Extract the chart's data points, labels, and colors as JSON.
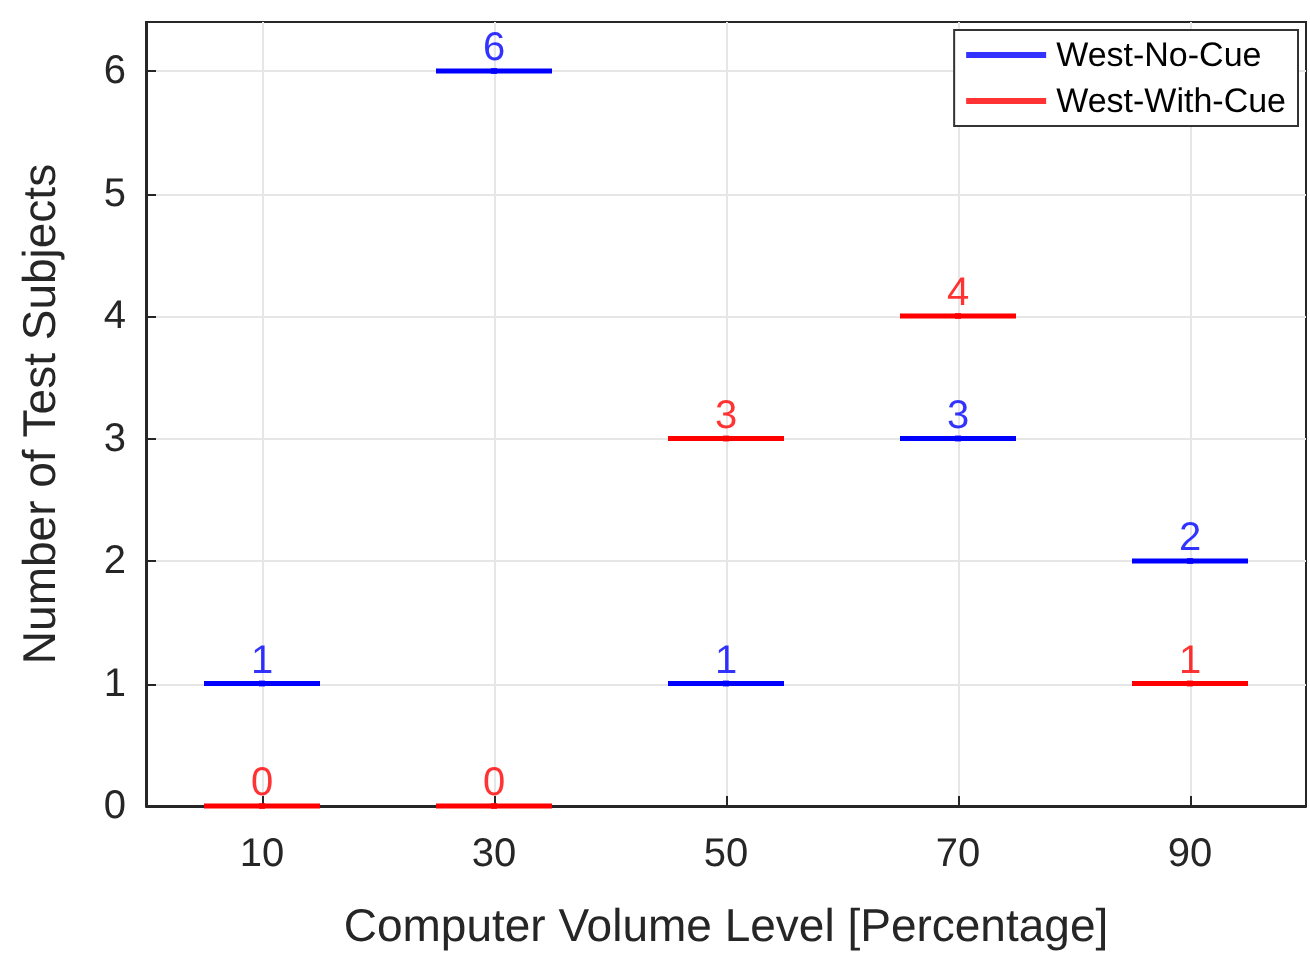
{
  "chart_data": {
    "type": "scatter",
    "xlabel": "Computer Volume Level [Percentage]",
    "ylabel": "Number of Test Subjects",
    "x": [
      10,
      30,
      50,
      70,
      90
    ],
    "series": [
      {
        "name": "West-No-Cue",
        "color": "#0000ff",
        "values": [
          1,
          6,
          1,
          3,
          2
        ],
        "xerrors": [
          5,
          5,
          5,
          5,
          5
        ]
      },
      {
        "name": "West-With-Cue",
        "color": "#ff0000",
        "values": [
          0,
          0,
          3,
          4,
          1
        ],
        "xerrors": [
          5,
          5,
          5,
          5,
          5
        ]
      }
    ],
    "xlim": [
      0,
      100
    ],
    "xticks": [
      10,
      30,
      50,
      70,
      90
    ],
    "ylim": [
      0,
      6.4
    ],
    "yticks": [
      0,
      1,
      2,
      3,
      4,
      5,
      6
    ],
    "grid": true,
    "legend": "top right",
    "data_labels": true,
    "marker": "square"
  }
}
